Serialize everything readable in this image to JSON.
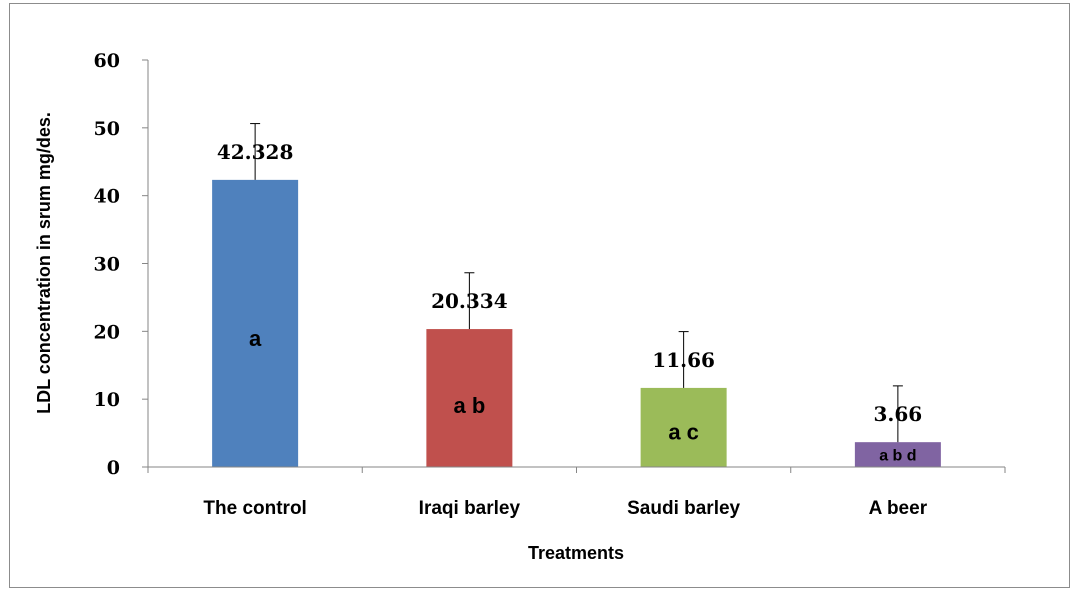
{
  "chart_data": {
    "type": "bar",
    "title": "",
    "xlabel": "Treatments",
    "ylabel": "LDL concentration in srum  mg/des.",
    "ylim": [
      0,
      60
    ],
    "yticks": [
      "0",
      "10",
      "20",
      "30",
      "40",
      "50",
      "60"
    ],
    "categories": [
      "The control",
      "Iraqi barley",
      "Saudi barley",
      "A beer"
    ],
    "values": [
      42.328,
      20.334,
      11.66,
      3.66
    ],
    "value_labels": [
      "42.328",
      "20.334",
      "11.66",
      "3.66"
    ],
    "error_plus": [
      8.3,
      8.3,
      8.3,
      8.3
    ],
    "group_letters": [
      "a",
      "a b",
      "a c",
      "a b d"
    ],
    "colors": [
      "#4f81bd",
      "#c0504d",
      "#9bbb59",
      "#8064a2"
    ],
    "grid": false,
    "legend": "none"
  }
}
